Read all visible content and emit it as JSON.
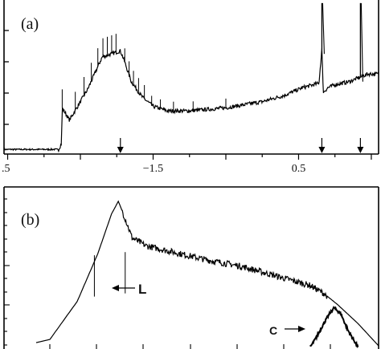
{
  "chart_data": [
    {
      "type": "line",
      "panel_label": "(a)",
      "x_tick_labels": [
        ".5",
        "−1.5",
        "0.5"
      ],
      "xlim": [
        -3.55,
        1.6
      ],
      "ylim": [
        0,
        1
      ],
      "x": [
        -3.55,
        -2.8,
        -2.76,
        -2.75,
        -2.65,
        -2.4,
        -2.2,
        -1.95,
        -1.9,
        -1.8,
        -1.65,
        -1.5,
        -1.3,
        -1.0,
        -0.5,
        0.0,
        0.3,
        0.55,
        0.78,
        0.82,
        0.84,
        0.9,
        1.0,
        1.2,
        1.3,
        1.45
      ],
      "y": [
        0.03,
        0.03,
        0.07,
        0.3,
        0.22,
        0.42,
        0.63,
        0.67,
        0.61,
        0.47,
        0.37,
        0.31,
        0.28,
        0.28,
        0.3,
        0.34,
        0.38,
        0.43,
        0.46,
        0.68,
        0.4,
        0.43,
        0.45,
        0.47,
        0.49,
        0.52
      ],
      "sharp_peaks": [
        {
          "x": 0.82,
          "y": 0.98
        },
        {
          "x": 1.35,
          "y": 0.98
        }
      ],
      "arrows_x": [
        -1.95,
        0.82,
        1.35
      ]
    },
    {
      "type": "line",
      "panel_label": "(b)",
      "annotations": [
        "L",
        "C"
      ],
      "series": [
        {
          "x": [
            0.0,
            0.04,
            0.12,
            0.18,
            0.22,
            0.24,
            0.26,
            0.28,
            0.32,
            0.38,
            0.5,
            0.6,
            0.7,
            0.8,
            0.84,
            0.88,
            0.94,
            1.0
          ],
          "y": [
            0.04,
            0.06,
            0.3,
            0.6,
            0.85,
            0.93,
            0.82,
            0.7,
            0.65,
            0.62,
            0.56,
            0.52,
            0.46,
            0.4,
            0.35,
            0.28,
            0.16,
            0.02
          ]
        },
        {
          "x": [
            0.8,
            0.82,
            0.85,
            0.87,
            0.89,
            0.91,
            0.94
          ],
          "y": [
            0.01,
            0.08,
            0.2,
            0.26,
            0.22,
            0.12,
            0.01
          ]
        }
      ]
    }
  ]
}
